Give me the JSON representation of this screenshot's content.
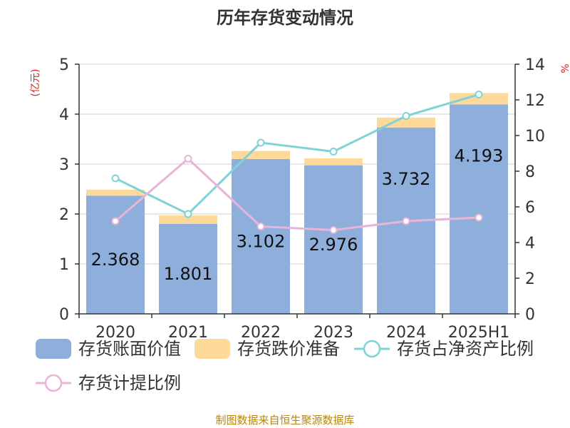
{
  "chart_data": {
    "type": "bar",
    "title": "历年存货变动情况",
    "categories": [
      "2020",
      "2021",
      "2022",
      "2023",
      "2024",
      "2025H1"
    ],
    "left_unit": "(亿元)",
    "right_unit": "%",
    "left_axis": {
      "min": 0,
      "max": 5,
      "ticks": [
        "0",
        "1",
        "2",
        "3",
        "4",
        "5"
      ]
    },
    "right_axis": {
      "min": 0,
      "max": 14,
      "ticks": [
        "0",
        "2",
        "4",
        "6",
        "8",
        "10",
        "12",
        "14"
      ]
    },
    "grid": true,
    "legend_position": "bottom",
    "series": [
      {
        "name": "存货账面价值",
        "kind": "bar",
        "stack": "a",
        "axis": "left",
        "color": "#8eaedc",
        "values": [
          2.368,
          1.801,
          3.102,
          2.976,
          3.732,
          4.193
        ],
        "labels": [
          "2.368",
          "1.801",
          "3.102",
          "2.976",
          "3.732",
          "4.193"
        ]
      },
      {
        "name": "存货跌价准备",
        "kind": "bar",
        "stack": "a",
        "axis": "left",
        "color": "#fdd99a",
        "values": [
          0.12,
          0.17,
          0.16,
          0.14,
          0.2,
          0.23
        ]
      },
      {
        "name": "存货占净资产比例",
        "kind": "line",
        "axis": "right",
        "color": "#7fd3d6",
        "values": [
          7.6,
          5.6,
          9.6,
          9.1,
          11.1,
          12.3
        ]
      },
      {
        "name": "存货计提比例",
        "kind": "line",
        "axis": "right",
        "color": "#e8b4d8",
        "values": [
          5.2,
          8.7,
          4.9,
          4.7,
          5.2,
          5.4
        ]
      }
    ]
  },
  "footer": {
    "source": "制图数据来自恒生聚源数据库"
  }
}
